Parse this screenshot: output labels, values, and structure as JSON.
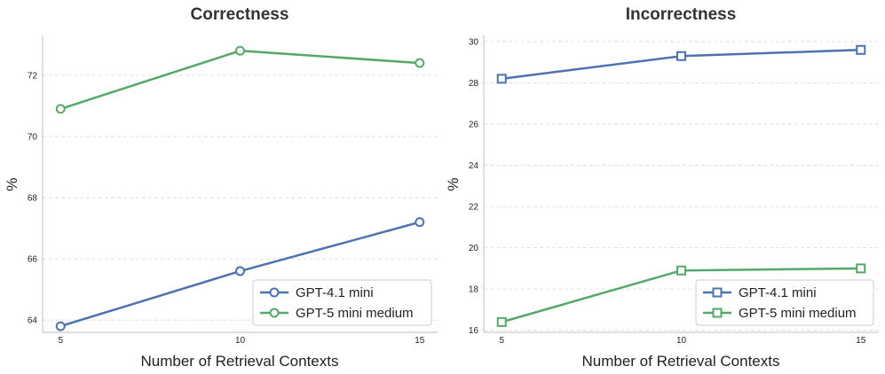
{
  "colors": {
    "blue": "#4c72b0",
    "green": "#55a868",
    "grid": "#d9d9d9",
    "axis": "#bfbfbf"
  },
  "chart_data": [
    {
      "type": "line",
      "title": "Correctness",
      "xlabel": "Number of Retrieval Contexts",
      "ylabel": "%",
      "x": [
        5,
        10,
        15
      ],
      "xlim": [
        4.5,
        15.5
      ],
      "ylim": [
        63.6,
        73.3
      ],
      "yticks": [
        64,
        66,
        68,
        70,
        72
      ],
      "marker": "circle",
      "legend_position": "lower-right",
      "series": [
        {
          "name": "GPT-4.1 mini",
          "values": [
            63.8,
            65.6,
            67.2
          ],
          "color": "#4c72b0"
        },
        {
          "name": "GPT-5 mini medium",
          "values": [
            70.9,
            72.8,
            72.4
          ],
          "color": "#55a868"
        }
      ]
    },
    {
      "type": "line",
      "title": "Incorrectness",
      "xlabel": "Number of Retrieval Contexts",
      "ylabel": "%",
      "x": [
        5,
        10,
        15
      ],
      "xlim": [
        4.5,
        15.5
      ],
      "ylim": [
        15.9,
        30.3
      ],
      "yticks": [
        16,
        18,
        20,
        22,
        24,
        26,
        28,
        30
      ],
      "marker": "square",
      "legend_position": "lower-right",
      "series": [
        {
          "name": "GPT-4.1 mini",
          "values": [
            28.2,
            29.3,
            29.6
          ],
          "color": "#4c72b0"
        },
        {
          "name": "GPT-5 mini medium",
          "values": [
            16.4,
            18.9,
            19.0
          ],
          "color": "#55a868"
        }
      ]
    }
  ]
}
